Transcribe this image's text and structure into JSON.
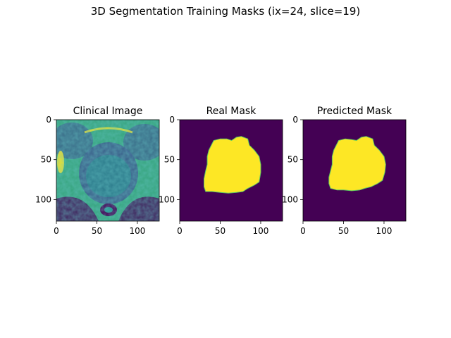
{
  "figure": {
    "suptitle": "3D Segmentation Training Masks (ix=24, slice=19)"
  },
  "colors": {
    "viridis_purple": "#440154",
    "viridis_yellow": "#fde725",
    "viridis_teal": "#21918c",
    "viridis_green": "#5ec962",
    "viridis_blue": "#3b528b"
  },
  "chart_data": [
    {
      "type": "heatmap",
      "title": "Clinical Image",
      "xlabel": "",
      "ylabel": "",
      "xlim": [
        0,
        127
      ],
      "ylim": [
        127,
        0
      ],
      "xticks": [
        0,
        50,
        100
      ],
      "yticks": [
        0,
        50,
        100
      ],
      "colormap": "viridis",
      "content": "clinical MRI slice"
    },
    {
      "type": "heatmap",
      "title": "Real Mask",
      "xlabel": "",
      "ylabel": "",
      "xlim": [
        0,
        127
      ],
      "ylim": [
        127,
        0
      ],
      "xticks": [
        0,
        50,
        100
      ],
      "yticks": [
        0,
        50,
        100
      ],
      "colormap": "viridis",
      "mask_outline": [
        [
          40,
          30
        ],
        [
          42,
          26
        ],
        [
          50,
          24
        ],
        [
          58,
          24
        ],
        [
          64,
          26
        ],
        [
          70,
          22
        ],
        [
          76,
          21
        ],
        [
          84,
          24
        ],
        [
          86,
          32
        ],
        [
          92,
          38
        ],
        [
          98,
          46
        ],
        [
          100,
          56
        ],
        [
          100,
          66
        ],
        [
          98,
          78
        ],
        [
          92,
          82
        ],
        [
          84,
          86
        ],
        [
          78,
          90
        ],
        [
          70,
          91
        ],
        [
          60,
          92
        ],
        [
          50,
          91
        ],
        [
          40,
          90
        ],
        [
          32,
          90
        ],
        [
          30,
          84
        ],
        [
          30,
          74
        ],
        [
          32,
          64
        ],
        [
          34,
          56
        ],
        [
          34,
          46
        ],
        [
          36,
          38
        ]
      ]
    },
    {
      "type": "heatmap",
      "title": "Predicted Mask",
      "xlabel": "",
      "ylabel": "",
      "xlim": [
        0,
        127
      ],
      "ylim": [
        127,
        0
      ],
      "xticks": [
        0,
        50,
        100
      ],
      "yticks": [
        0,
        50,
        100
      ],
      "colormap": "viridis",
      "mask_outline": [
        [
          42,
          30
        ],
        [
          44,
          26
        ],
        [
          52,
          24
        ],
        [
          60,
          25
        ],
        [
          66,
          26
        ],
        [
          72,
          22
        ],
        [
          78,
          21
        ],
        [
          86,
          24
        ],
        [
          88,
          32
        ],
        [
          94,
          38
        ],
        [
          100,
          46
        ],
        [
          102,
          56
        ],
        [
          101,
          66
        ],
        [
          98,
          76
        ],
        [
          92,
          80
        ],
        [
          84,
          84
        ],
        [
          76,
          86
        ],
        [
          70,
          88
        ],
        [
          60,
          89
        ],
        [
          50,
          88
        ],
        [
          42,
          88
        ],
        [
          34,
          86
        ],
        [
          32,
          80
        ],
        [
          32,
          72
        ],
        [
          34,
          64
        ],
        [
          36,
          56
        ],
        [
          36,
          46
        ],
        [
          38,
          38
        ]
      ]
    }
  ]
}
